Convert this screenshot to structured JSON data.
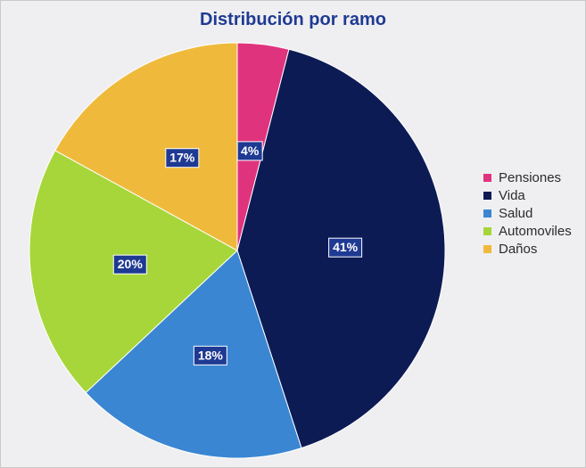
{
  "chart_data": {
    "type": "pie",
    "title": "Distribución por ramo",
    "legend_position": "right",
    "slices": [
      {
        "name": "Pensiones",
        "value": 4,
        "label": "4%",
        "color": "#e0337d"
      },
      {
        "name": "Vida",
        "value": 41,
        "label": "41%",
        "color": "#0d1b55"
      },
      {
        "name": "Salud",
        "value": 18,
        "label": "18%",
        "color": "#3a86d2"
      },
      {
        "name": "Automoviles",
        "value": 20,
        "label": "20%",
        "color": "#a7d63b"
      },
      {
        "name": "Daños",
        "value": 17,
        "label": "17%",
        "color": "#efba3c"
      }
    ]
  },
  "style": {
    "background": "#efeff1",
    "title_color": "#1f3a93",
    "label_box_color": "#1f3a93",
    "label_text_color": "#ffffff"
  }
}
